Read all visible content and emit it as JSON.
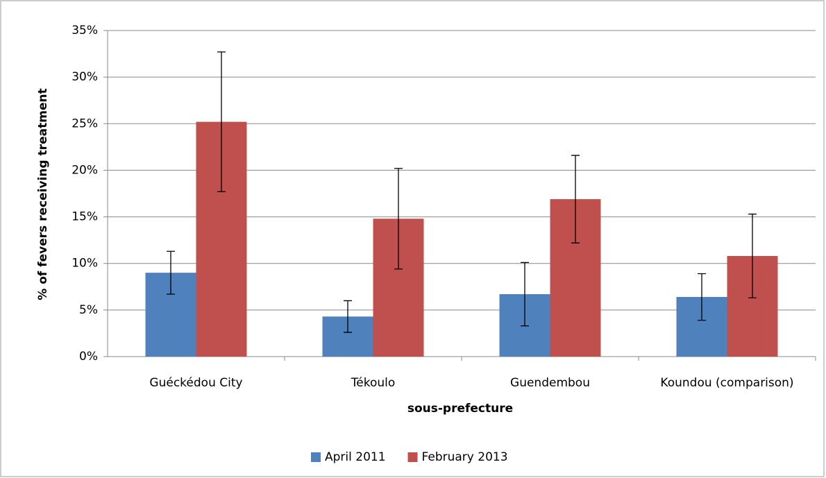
{
  "chart_data": {
    "type": "bar",
    "x_label": "sous-prefecture",
    "y_label": "% of fevers receiving treatment",
    "categories": [
      "Guéckédou City",
      "Tékoulo",
      "Guendembou",
      "Koundou (comparison)"
    ],
    "series": [
      {
        "name": "April 2011",
        "color": "#4f81bd",
        "values": [
          9.0,
          4.3,
          6.7,
          6.4
        ],
        "errors": [
          2.3,
          1.7,
          3.4,
          2.5
        ]
      },
      {
        "name": "February 2013",
        "color": "#c0504d",
        "values": [
          25.2,
          14.8,
          16.9,
          10.8
        ],
        "errors": [
          7.5,
          5.4,
          4.7,
          4.5
        ]
      }
    ],
    "ylim": [
      0,
      35
    ],
    "yticks": [
      {
        "value": 0,
        "label": "0%"
      },
      {
        "value": 5,
        "label": "5%"
      },
      {
        "value": 10,
        "label": "10%"
      },
      {
        "value": 15,
        "label": "15%"
      },
      {
        "value": 20,
        "label": "20%"
      },
      {
        "value": 25,
        "label": "25%"
      },
      {
        "value": 30,
        "label": "30%"
      },
      {
        "value": 35,
        "label": "35%"
      }
    ],
    "grid": true,
    "legend": "bottom"
  }
}
